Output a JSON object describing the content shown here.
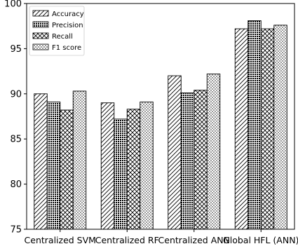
{
  "chart_data": {
    "type": "bar",
    "categories": [
      "Centralized SVM",
      "Centralized RF",
      "Centralized ANN",
      "Global HFL (ANN)"
    ],
    "series": [
      {
        "name": "Accuracy",
        "values": [
          90.0,
          89.0,
          92.0,
          97.2
        ],
        "pattern": "diagonal"
      },
      {
        "name": "Precision",
        "values": [
          89.1,
          87.2,
          90.1,
          98.1
        ],
        "pattern": "dense-dots"
      },
      {
        "name": "Recall",
        "values": [
          88.2,
          88.3,
          90.4,
          97.2
        ],
        "pattern": "crosshatch"
      },
      {
        "name": "F1 score",
        "values": [
          90.3,
          89.1,
          92.2,
          97.6
        ],
        "pattern": "light-dots"
      }
    ],
    "title": "",
    "xlabel": "",
    "ylabel": "",
    "ylim": [
      75,
      100
    ],
    "yticks": [
      75,
      80,
      85,
      90,
      95,
      100
    ],
    "grid": false,
    "legend_position": "top-left"
  }
}
